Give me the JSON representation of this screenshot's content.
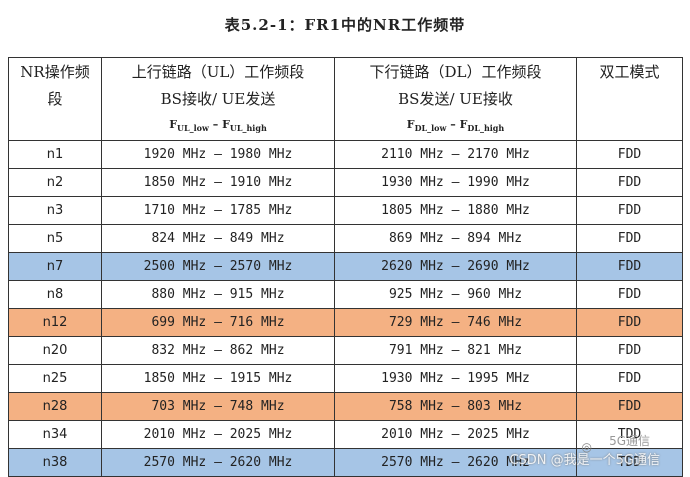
{
  "title": "表5.2-1：FR1中的NR工作频带",
  "header": {
    "col1": [
      "NR操作频",
      "段"
    ],
    "col2": [
      "上行链路（UL）工作频段",
      "BS接收/ UE发送"
    ],
    "col2_formula": {
      "f1": "F",
      "s1": "UL_low",
      "dash": " – ",
      "f2": "F",
      "s2": "UL_high"
    },
    "col3": [
      "下行链路（DL）工作频段",
      "BS发送/ UE接收"
    ],
    "col3_formula": {
      "f1": "F",
      "s1": "DL_low",
      "dash": " – ",
      "f2": "F",
      "s2": "DL_high"
    },
    "col4": "双工模式"
  },
  "rows": [
    {
      "band": "n1",
      "ul": "1920 MHz – 1980 MHz",
      "dl": "2110 MHz – 2170 MHz",
      "mode": "FDD",
      "color": "#ffffff"
    },
    {
      "band": "n2",
      "ul": "1850 MHz – 1910 MHz",
      "dl": "1930 MHz – 1990 MHz",
      "mode": "FDD",
      "color": "#ffffff"
    },
    {
      "band": "n3",
      "ul": "1710 MHz – 1785 MHz",
      "dl": "1805 MHz – 1880 MHz",
      "mode": "FDD",
      "color": "#ffffff"
    },
    {
      "band": "n5",
      "ul": "824 MHz – 849 MHz",
      "dl": "869 MHz – 894 MHz",
      "mode": "FDD",
      "color": "#ffffff"
    },
    {
      "band": "n7",
      "ul": "2500 MHz – 2570 MHz",
      "dl": "2620 MHz – 2690 MHz",
      "mode": "FDD",
      "color": "#a6c5e6"
    },
    {
      "band": "n8",
      "ul": "880 MHz – 915 MHz",
      "dl": "925 MHz – 960 MHz",
      "mode": "FDD",
      "color": "#ffffff"
    },
    {
      "band": "n12",
      "ul": "699 MHz – 716 MHz",
      "dl": "729 MHz – 746 MHz",
      "mode": "FDD",
      "color": "#f4b183"
    },
    {
      "band": "n20",
      "ul": "832 MHz – 862 MHz",
      "dl": "791 MHz – 821 MHz",
      "mode": "FDD",
      "color": "#ffffff"
    },
    {
      "band": "n25",
      "ul": "1850 MHz – 1915 MHz",
      "dl": "1930 MHz – 1995 MHz",
      "mode": "FDD",
      "color": "#ffffff"
    },
    {
      "band": "n28",
      "ul": "703 MHz – 748 MHz",
      "dl": "758 MHz – 803 MHz",
      "mode": "FDD",
      "color": "#f4b183"
    },
    {
      "band": "n34",
      "ul": "2010 MHz – 2025 MHz",
      "dl": "2010 MHz – 2025 MHz",
      "mode": "TDD",
      "color": "#ffffff"
    },
    {
      "band": "n38",
      "ul": "2570 MHz – 2620 MHz",
      "dl": "2570 MHz – 2620 MHz",
      "mode": "TDD",
      "color": "#a6c5e6"
    }
  ],
  "watermark": {
    "text": "CSDN @我是一个5G通信",
    "brand": "5G通信"
  }
}
